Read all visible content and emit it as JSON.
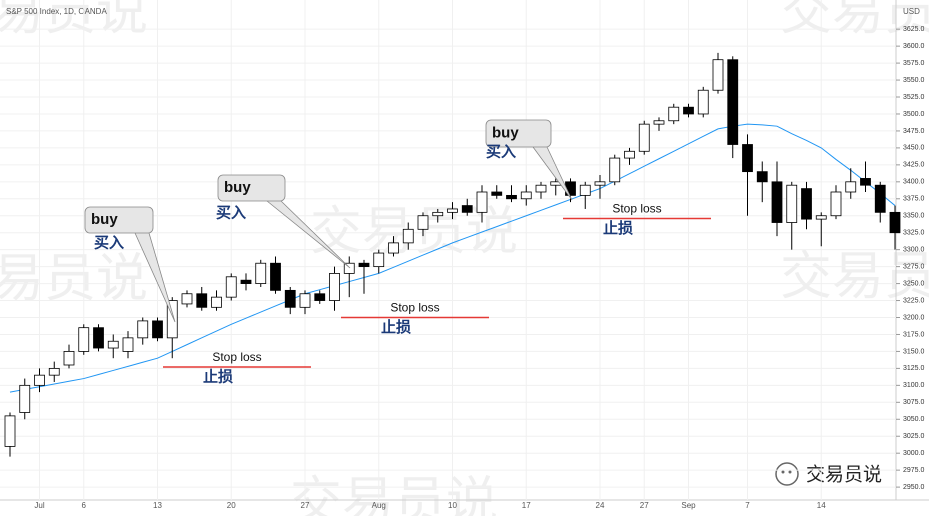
{
  "watermark": "交易员说",
  "brand": "交易员说",
  "chart_data": {
    "type": "candlestick",
    "title": "S&P 500 Index, 1D, OANDA",
    "currency": "USD",
    "categories": [
      null,
      null,
      "Jul",
      null,
      null,
      "6",
      null,
      null,
      null,
      null,
      "13",
      null,
      null,
      null,
      null,
      "20",
      null,
      null,
      null,
      null,
      "27",
      null,
      null,
      null,
      null,
      "Aug",
      null,
      null,
      null,
      null,
      "10",
      null,
      null,
      null,
      null,
      "17",
      null,
      null,
      null,
      null,
      "24",
      null,
      null,
      "27",
      null,
      null,
      "Sep",
      null,
      null,
      null,
      "7",
      null,
      null,
      null,
      null,
      "14",
      null,
      null,
      null,
      null,
      null
    ],
    "open": [
      3010,
      3060,
      3100,
      3115,
      3130,
      3150,
      3185,
      3155,
      3150,
      3170,
      3195,
      3170,
      3220,
      3235,
      3215,
      3230,
      3255,
      3250,
      3280,
      3240,
      3215,
      3235,
      3225,
      3265,
      3280,
      3275,
      3295,
      3310,
      3330,
      3350,
      3355,
      3365,
      3355,
      3385,
      3380,
      3375,
      3385,
      3395,
      3400,
      3380,
      3395,
      3400,
      3435,
      3445,
      3485,
      3490,
      3510,
      3500,
      3535,
      3580,
      3455,
      3415,
      3400,
      3340,
      3390,
      3345,
      3350,
      3385,
      3405,
      3395,
      3355
    ],
    "high": [
      3060,
      3110,
      3125,
      3135,
      3160,
      3190,
      3190,
      3175,
      3180,
      3200,
      3200,
      3230,
      3240,
      3245,
      3240,
      3265,
      3265,
      3285,
      3290,
      3245,
      3240,
      3240,
      3275,
      3290,
      3285,
      3300,
      3320,
      3340,
      3355,
      3360,
      3370,
      3375,
      3395,
      3395,
      3395,
      3395,
      3400,
      3405,
      3405,
      3400,
      3410,
      3440,
      3450,
      3490,
      3495,
      3515,
      3515,
      3540,
      3590,
      3585,
      3470,
      3430,
      3430,
      3400,
      3400,
      3355,
      3395,
      3420,
      3430,
      3400,
      3365
    ],
    "low": [
      2995,
      3050,
      3090,
      3105,
      3125,
      3145,
      3150,
      3140,
      3140,
      3160,
      3165,
      3140,
      3215,
      3210,
      3210,
      3225,
      3240,
      3245,
      3235,
      3205,
      3205,
      3220,
      3210,
      3230,
      3235,
      3265,
      3290,
      3300,
      3320,
      3340,
      3345,
      3350,
      3340,
      3375,
      3370,
      3365,
      3375,
      3380,
      3370,
      3360,
      3375,
      3395,
      3425,
      3440,
      3475,
      3485,
      3495,
      3495,
      3530,
      3435,
      3350,
      3370,
      3320,
      3300,
      3330,
      3305,
      3345,
      3375,
      3385,
      3340,
      3300
    ],
    "close": [
      3055,
      3100,
      3115,
      3125,
      3150,
      3185,
      3155,
      3165,
      3170,
      3195,
      3170,
      3225,
      3235,
      3215,
      3230,
      3260,
      3250,
      3280,
      3240,
      3215,
      3235,
      3225,
      3265,
      3280,
      3275,
      3295,
      3310,
      3330,
      3350,
      3355,
      3360,
      3355,
      3385,
      3380,
      3375,
      3385,
      3395,
      3400,
      3380,
      3395,
      3400,
      3435,
      3445,
      3485,
      3490,
      3510,
      3500,
      3535,
      3580,
      3455,
      3415,
      3400,
      3340,
      3395,
      3345,
      3350,
      3385,
      3400,
      3395,
      3355,
      3325
    ],
    "ma": {
      "color": "#2196f3",
      "values": [
        3090,
        3094,
        3098,
        3102,
        3106,
        3110,
        3116,
        3122,
        3128,
        3134,
        3140,
        3150,
        3160,
        3170,
        3180,
        3190,
        3199,
        3208,
        3217,
        3226,
        3235,
        3241,
        3247,
        3253,
        3259,
        3265,
        3274,
        3283,
        3292,
        3301,
        3310,
        3318,
        3326,
        3334,
        3342,
        3350,
        3358,
        3366,
        3374,
        3382,
        3390,
        3401,
        3412,
        3423,
        3434,
        3445,
        3456,
        3467,
        3478,
        3482,
        3485,
        3484,
        3482,
        3471,
        3461,
        3450,
        3433,
        3417,
        3400,
        3383,
        3365
      ]
    },
    "up_color": "#ffffff",
    "down_color": "#000000",
    "ylim": [
      2931,
      3668
    ],
    "yticks": [
      {
        "value": 2950,
        "label": "2950.0"
      },
      {
        "value": 2975,
        "label": "2975.0"
      },
      {
        "value": 3000,
        "label": "3000.0"
      },
      {
        "value": 3025,
        "label": "3025.0"
      },
      {
        "value": 3050,
        "label": "3050.0"
      },
      {
        "value": 3075,
        "label": "3075.0"
      },
      {
        "value": 3100,
        "label": "3100.0"
      },
      {
        "value": 3125,
        "label": "3125.0"
      },
      {
        "value": 3150,
        "label": "3150.0"
      },
      {
        "value": 3175,
        "label": "3175.0"
      },
      {
        "value": 3200,
        "label": "3200.0"
      },
      {
        "value": 3225,
        "label": "3225.0"
      },
      {
        "value": 3250,
        "label": "3250.0"
      },
      {
        "value": 3275,
        "label": "3275.0"
      },
      {
        "value": 3300,
        "label": "3300.0"
      },
      {
        "value": 3325,
        "label": "3325.0"
      },
      {
        "value": 3350,
        "label": "3350.0"
      },
      {
        "value": 3375,
        "label": "3375.0"
      },
      {
        "value": 3400,
        "label": "3400.0"
      },
      {
        "value": 3425,
        "label": "3425.0"
      },
      {
        "value": 3450,
        "label": "3450.0"
      },
      {
        "value": 3475,
        "label": "3475.0"
      },
      {
        "value": 3500,
        "label": "3500.0"
      },
      {
        "value": 3525,
        "label": "3525.0"
      },
      {
        "value": 3550,
        "label": "3550.0"
      },
      {
        "value": 3575,
        "label": "3575.0"
      },
      {
        "value": 3600,
        "label": "3600.0"
      },
      {
        "value": 3625,
        "label": "3625.0"
      }
    ],
    "grid": true,
    "buy_signals": [
      {
        "label": "buy",
        "label_cn": "买入"
      },
      {
        "label": "buy",
        "label_cn": "买入"
      },
      {
        "label": "buy",
        "label_cn": "买入"
      }
    ],
    "stop_losses": [
      {
        "label": "Stop loss",
        "label_cn": "止损",
        "value": 3127,
        "color": "#e53935"
      },
      {
        "label": "Stop loss",
        "label_cn": "止损",
        "value": 3200,
        "color": "#e53935"
      },
      {
        "label": "Stop loss",
        "label_cn": "止损",
        "value": 3346,
        "color": "#e53935"
      }
    ]
  }
}
